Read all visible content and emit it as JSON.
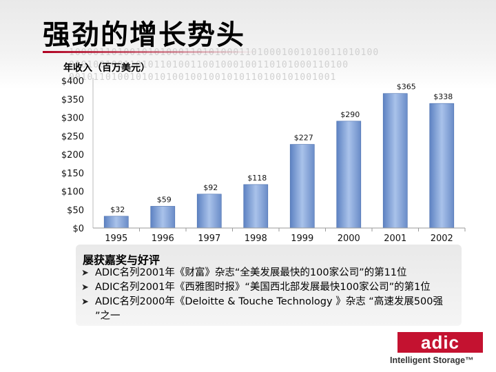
{
  "slide": {
    "title": "强劲的增长势头",
    "binary_lines": [
      "100001101001010100011010100011010001001010011010100",
      "0101001001101011010011001000100110101000110100",
      "00101101001010101001001001010110100101001001"
    ]
  },
  "chart_data": {
    "type": "bar",
    "title": "年收入（百万美元）",
    "xlabel": "",
    "ylabel": "",
    "categories": [
      "1995",
      "1996",
      "1997",
      "1998",
      "1999",
      "2000",
      "2001",
      "2002"
    ],
    "values": [
      32,
      59,
      92,
      118,
      227,
      290,
      365,
      338
    ],
    "data_labels": [
      "$32",
      "$59",
      "$92",
      "$118",
      "$227",
      "$290",
      "$365",
      "$338"
    ],
    "ylim": [
      0,
      400
    ],
    "yticks": [
      0,
      50,
      100,
      150,
      200,
      250,
      300,
      350,
      400
    ],
    "ytick_labels": [
      "$0",
      "$50",
      "$100",
      "$150",
      "$200",
      "$250",
      "$300",
      "$350",
      "$400"
    ],
    "grid": false,
    "bar_color": "#7a9bd0"
  },
  "awards": {
    "heading": "屡获嘉奖与好评",
    "items": [
      "ADIC名列2001年《财富》杂志“全美发展最快的100家公司”的第11位",
      "ADIC名列2001年《西雅图时报》“美国西北部发展最快100家公司”的第1位",
      "ADIC名列2000年《Deloitte & Touche Technology 》杂志 “高速发展500强 ”之一"
    ]
  },
  "branding": {
    "logo_text": "adic",
    "tagline": "Intelligent Storage™",
    "brand_color": "#c41230"
  }
}
